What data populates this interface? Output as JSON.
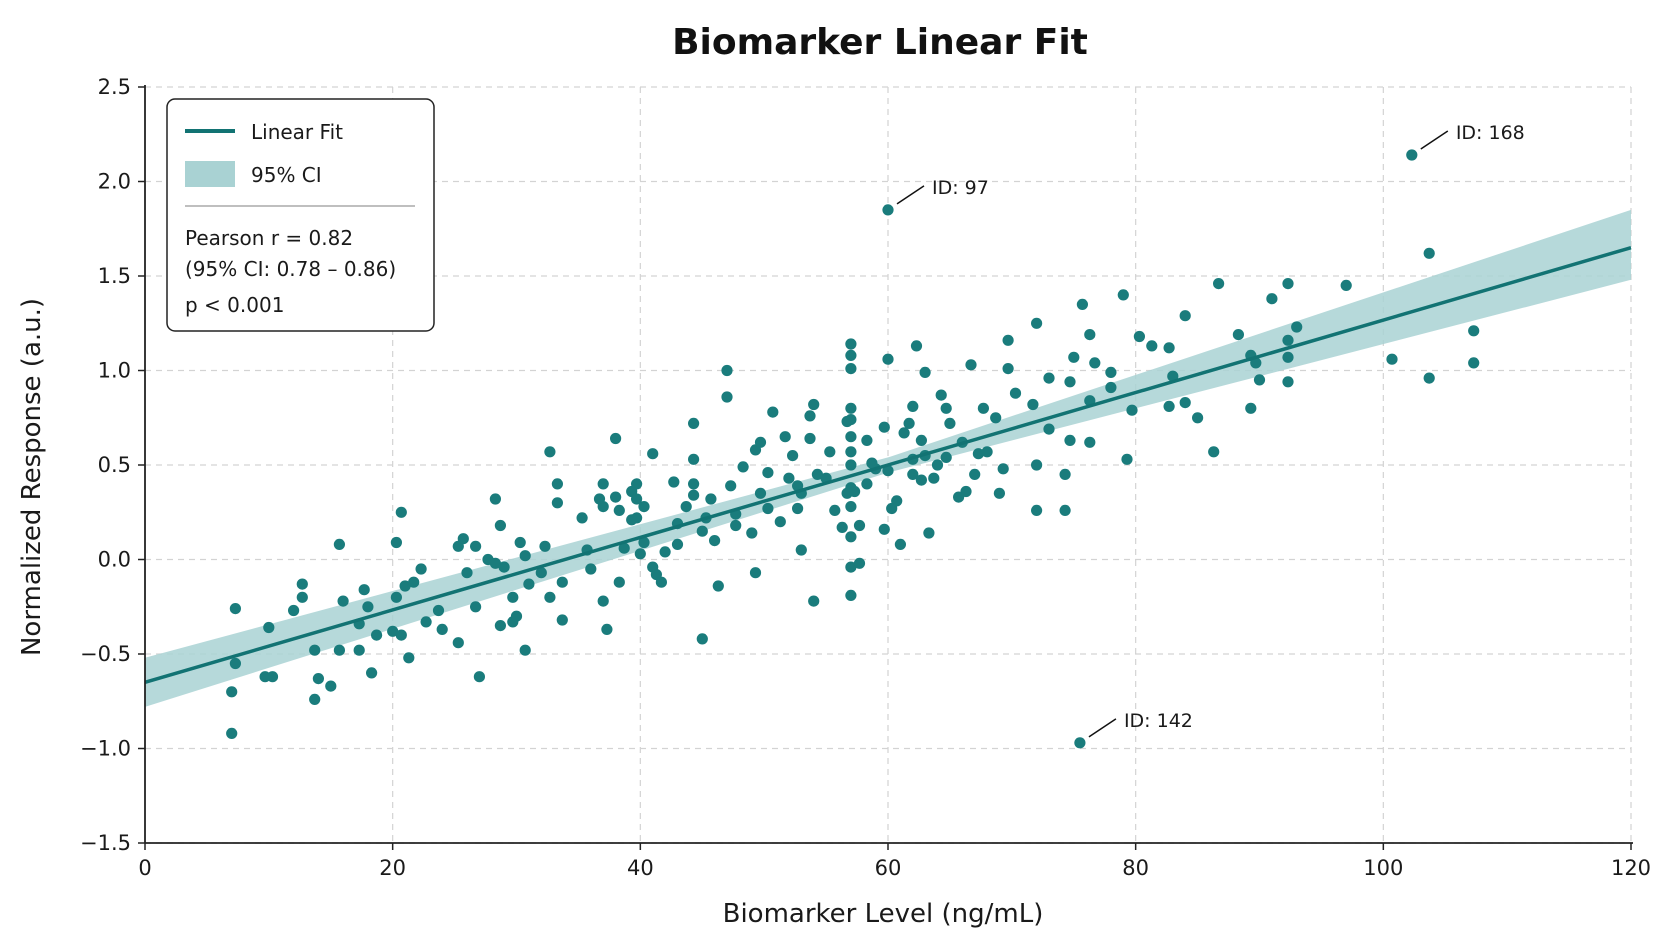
{
  "chart_data": {
    "type": "scatter",
    "title": "Biomarker Linear Fit",
    "xlabel": "Biomarker Level (ng/mL)",
    "ylabel": "Normalized Response (a.u.)",
    "xlim": [
      0,
      120
    ],
    "ylim": [
      -1.5,
      2.5
    ],
    "xticks": [
      0,
      20,
      40,
      60,
      80,
      100,
      120
    ],
    "yticks": [
      -1.5,
      -1.0,
      -0.5,
      0.0,
      0.5,
      1.0,
      1.5,
      2.0,
      2.5
    ],
    "ytick_labels": [
      "−1.5",
      "−1.0",
      "−0.5",
      "0.0",
      "0.5",
      "1.0",
      "1.5",
      "2.0",
      "2.5"
    ],
    "grid": true,
    "legend": {
      "placement": "top-left",
      "entries": [
        "Linear Fit",
        "95% CI"
      ],
      "stats": [
        "Pearson r = 0.82",
        "(95% CI: 0.78 – 0.86)",
        "p < 0.001"
      ]
    },
    "fit_line": {
      "name": "Linear Fit",
      "x": [
        0,
        120
      ],
      "y": [
        -0.65,
        1.65
      ]
    },
    "ci_band": {
      "name": "95% CI",
      "x": [
        0,
        60,
        120
      ],
      "upper": [
        -0.52,
        0.54,
        1.85
      ],
      "lower": [
        -0.78,
        0.46,
        1.48
      ]
    },
    "colors": {
      "points": "#1a7c7c",
      "line": "#127373",
      "band": "#a9d2d3",
      "grid": "#d3d3d3",
      "axis": "#222222"
    },
    "annotations": [
      {
        "text": "ID: 97",
        "x": 60,
        "y": 1.85
      },
      {
        "text": "ID: 168",
        "x": 102.3,
        "y": 2.14
      },
      {
        "text": "ID: 142",
        "x": 75.5,
        "y": -0.97
      }
    ],
    "points": [
      [
        7,
        -0.92
      ],
      [
        7,
        -0.7
      ],
      [
        7.3,
        -0.26
      ],
      [
        7.3,
        -0.55
      ],
      [
        10,
        -0.36
      ],
      [
        9.7,
        -0.62
      ],
      [
        10.3,
        -0.62
      ],
      [
        12,
        -0.27
      ],
      [
        12.7,
        -0.13
      ],
      [
        12.7,
        -0.2
      ],
      [
        13.7,
        -0.74
      ],
      [
        13.7,
        -0.48
      ],
      [
        14,
        -0.63
      ],
      [
        15,
        -0.67
      ],
      [
        15.7,
        0.08
      ],
      [
        15.7,
        -0.48
      ],
      [
        16,
        -0.22
      ],
      [
        17.3,
        -0.34
      ],
      [
        17.3,
        -0.48
      ],
      [
        17.7,
        -0.16
      ],
      [
        18,
        -0.25
      ],
      [
        18.3,
        -0.6
      ],
      [
        18.7,
        -0.4
      ],
      [
        20,
        -0.38
      ],
      [
        20.3,
        0.09
      ],
      [
        20.3,
        -0.2
      ],
      [
        20.7,
        0.25
      ],
      [
        20.7,
        -0.4
      ],
      [
        21,
        -0.14
      ],
      [
        21.3,
        -0.52
      ],
      [
        21.7,
        -0.12
      ],
      [
        22.3,
        -0.05
      ],
      [
        22.7,
        -0.33
      ],
      [
        23.7,
        -0.27
      ],
      [
        24,
        -0.37
      ],
      [
        25.3,
        -0.44
      ],
      [
        25.3,
        0.07
      ],
      [
        25.7,
        0.11
      ],
      [
        26,
        -0.07
      ],
      [
        26.7,
        0.07
      ],
      [
        26.7,
        -0.25
      ],
      [
        27,
        -0.62
      ],
      [
        27.7,
        0.0
      ],
      [
        28.3,
        -0.02
      ],
      [
        28.3,
        0.32
      ],
      [
        28.7,
        0.18
      ],
      [
        28.7,
        -0.35
      ],
      [
        29,
        -0.04
      ],
      [
        29.7,
        -0.2
      ],
      [
        29.7,
        -0.33
      ],
      [
        30,
        -0.3
      ],
      [
        30.3,
        0.09
      ],
      [
        30.7,
        -0.48
      ],
      [
        30.7,
        0.02
      ],
      [
        31,
        -0.13
      ],
      [
        32,
        -0.07
      ],
      [
        32.3,
        0.07
      ],
      [
        32.7,
        0.57
      ],
      [
        32.7,
        -0.2
      ],
      [
        33.3,
        0.3
      ],
      [
        33.3,
        0.4
      ],
      [
        33.7,
        -0.12
      ],
      [
        33.7,
        -0.32
      ],
      [
        35.3,
        0.22
      ],
      [
        35.7,
        0.05
      ],
      [
        36,
        -0.05
      ],
      [
        36.7,
        0.32
      ],
      [
        37,
        0.28
      ],
      [
        37,
        0.4
      ],
      [
        37,
        -0.22
      ],
      [
        37.3,
        -0.37
      ],
      [
        38,
        0.64
      ],
      [
        38,
        0.33
      ],
      [
        38.3,
        0.26
      ],
      [
        38.3,
        -0.12
      ],
      [
        38.7,
        0.06
      ],
      [
        39.3,
        0.21
      ],
      [
        39.3,
        0.36
      ],
      [
        39.7,
        0.4
      ],
      [
        39.7,
        0.32
      ],
      [
        39.7,
        0.22
      ],
      [
        40,
        0.03
      ],
      [
        40.3,
        0.28
      ],
      [
        40.3,
        0.09
      ],
      [
        41,
        0.56
      ],
      [
        41,
        -0.04
      ],
      [
        41.3,
        -0.08
      ],
      [
        41.7,
        -0.12
      ],
      [
        42,
        0.04
      ],
      [
        42.7,
        0.41
      ],
      [
        43,
        0.19
      ],
      [
        43,
        0.08
      ],
      [
        43.7,
        0.28
      ],
      [
        44.3,
        0.72
      ],
      [
        44.3,
        0.53
      ],
      [
        44.3,
        0.4
      ],
      [
        44.3,
        0.34
      ],
      [
        45,
        0.15
      ],
      [
        45,
        -0.42
      ],
      [
        45.3,
        0.22
      ],
      [
        45.7,
        0.32
      ],
      [
        46,
        0.1
      ],
      [
        46.3,
        -0.14
      ],
      [
        47,
        0.86
      ],
      [
        47,
        1.0
      ],
      [
        47.3,
        0.39
      ],
      [
        47.7,
        0.24
      ],
      [
        47.7,
        0.18
      ],
      [
        48.3,
        0.49
      ],
      [
        49,
        0.14
      ],
      [
        49.3,
        -0.07
      ],
      [
        49.3,
        0.58
      ],
      [
        49.7,
        0.62
      ],
      [
        49.7,
        0.35
      ],
      [
        50.3,
        0.46
      ],
      [
        50.3,
        0.27
      ],
      [
        50.7,
        0.78
      ],
      [
        51.3,
        0.2
      ],
      [
        51.7,
        0.65
      ],
      [
        52,
        0.43
      ],
      [
        52.3,
        0.55
      ],
      [
        52.7,
        0.39
      ],
      [
        52.7,
        0.27
      ],
      [
        53,
        0.05
      ],
      [
        53,
        0.35
      ],
      [
        53.7,
        0.76
      ],
      [
        53.7,
        0.64
      ],
      [
        54,
        0.82
      ],
      [
        54,
        -0.22
      ],
      [
        54.3,
        0.45
      ],
      [
        55,
        0.43
      ],
      [
        55.3,
        0.57
      ],
      [
        55.7,
        0.26
      ],
      [
        56.3,
        0.17
      ],
      [
        56.7,
        0.35
      ],
      [
        56.7,
        0.73
      ],
      [
        57,
        1.14
      ],
      [
        57,
        1.08
      ],
      [
        57,
        1.01
      ],
      [
        57,
        0.8
      ],
      [
        57,
        0.74
      ],
      [
        57,
        0.65
      ],
      [
        57,
        0.57
      ],
      [
        57,
        0.5
      ],
      [
        57,
        0.38
      ],
      [
        57,
        0.28
      ],
      [
        57,
        0.12
      ],
      [
        57,
        -0.04
      ],
      [
        57,
        -0.19
      ],
      [
        57.3,
        0.36
      ],
      [
        57.7,
        0.18
      ],
      [
        57.7,
        -0.02
      ],
      [
        58.3,
        0.63
      ],
      [
        58.3,
        0.4
      ],
      [
        58.7,
        0.51
      ],
      [
        59,
        0.48
      ],
      [
        59.7,
        0.7
      ],
      [
        59.7,
        0.16
      ],
      [
        60,
        1.06
      ],
      [
        60,
        0.47
      ],
      [
        60.3,
        0.27
      ],
      [
        60.7,
        0.31
      ],
      [
        61,
        0.08
      ],
      [
        61.3,
        0.67
      ],
      [
        61.7,
        0.72
      ],
      [
        62,
        0.81
      ],
      [
        62,
        0.45
      ],
      [
        62,
        0.53
      ],
      [
        62.3,
        1.13
      ],
      [
        62.7,
        0.63
      ],
      [
        62.7,
        0.42
      ],
      [
        63,
        0.99
      ],
      [
        63,
        0.55
      ],
      [
        63.3,
        0.14
      ],
      [
        63.7,
        0.43
      ],
      [
        64,
        0.5
      ],
      [
        64.3,
        0.87
      ],
      [
        64.7,
        0.54
      ],
      [
        64.7,
        0.8
      ],
      [
        65,
        0.72
      ],
      [
        65.7,
        0.33
      ],
      [
        66,
        0.62
      ],
      [
        66.3,
        0.36
      ],
      [
        66.7,
        1.03
      ],
      [
        67,
        0.45
      ],
      [
        67.3,
        0.56
      ],
      [
        67.7,
        0.8
      ],
      [
        68,
        0.57
      ],
      [
        68.7,
        0.75
      ],
      [
        69,
        0.35
      ],
      [
        69.3,
        0.48
      ],
      [
        69.7,
        1.16
      ],
      [
        69.7,
        1.01
      ],
      [
        70.3,
        0.88
      ],
      [
        71.7,
        0.82
      ],
      [
        72,
        1.25
      ],
      [
        72,
        0.5
      ],
      [
        72,
        0.26
      ],
      [
        73,
        0.96
      ],
      [
        73,
        0.69
      ],
      [
        74.3,
        0.26
      ],
      [
        74.3,
        0.45
      ],
      [
        74.7,
        0.94
      ],
      [
        74.7,
        0.63
      ],
      [
        75,
        1.07
      ],
      [
        75.7,
        1.35
      ],
      [
        76.3,
        1.19
      ],
      [
        76.3,
        0.84
      ],
      [
        76.3,
        0.62
      ],
      [
        76.7,
        1.04
      ],
      [
        78,
        0.99
      ],
      [
        78,
        0.91
      ],
      [
        79,
        1.4
      ],
      [
        79.3,
        0.53
      ],
      [
        79.7,
        0.79
      ],
      [
        80.3,
        1.18
      ],
      [
        81.3,
        1.13
      ],
      [
        82.7,
        1.12
      ],
      [
        82.7,
        0.81
      ],
      [
        83,
        0.97
      ],
      [
        84,
        1.29
      ],
      [
        84,
        0.83
      ],
      [
        85,
        0.75
      ],
      [
        86.3,
        0.57
      ],
      [
        86.7,
        1.46
      ],
      [
        88.3,
        1.19
      ],
      [
        89.3,
        1.08
      ],
      [
        89.3,
        0.8
      ],
      [
        89.7,
        1.04
      ],
      [
        90,
        0.95
      ],
      [
        91,
        1.38
      ],
      [
        92.3,
        1.46
      ],
      [
        92.3,
        1.16
      ],
      [
        92.3,
        1.07
      ],
      [
        92.3,
        0.94
      ],
      [
        93,
        1.23
      ],
      [
        97,
        1.45
      ],
      [
        100.7,
        1.06
      ],
      [
        103.7,
        1.62
      ],
      [
        103.7,
        0.96
      ],
      [
        107.3,
        1.21
      ],
      [
        107.3,
        1.04
      ],
      [
        60,
        1.85
      ],
      [
        102.3,
        2.14
      ],
      [
        75.5,
        -0.97
      ]
    ]
  }
}
